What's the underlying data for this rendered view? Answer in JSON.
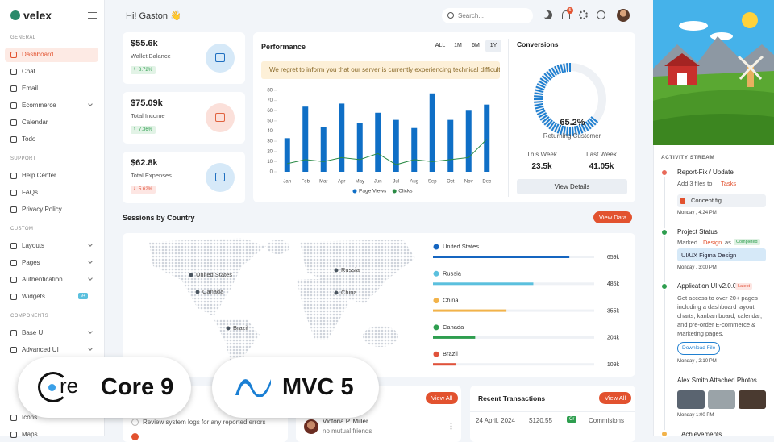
{
  "brand": "velex",
  "header": {
    "greeting": "Hi! Gaston 👋",
    "search": "Search...",
    "notifications": "5"
  },
  "sidebar": [
    {
      "title": "GENERAL",
      "items": [
        {
          "label": "Dashboard",
          "active": true
        },
        {
          "label": "Chat"
        },
        {
          "label": "Email"
        },
        {
          "label": "Ecommerce",
          "expand": true
        },
        {
          "label": "Calendar"
        },
        {
          "label": "Todo"
        }
      ]
    },
    {
      "title": "SUPPORT",
      "items": [
        {
          "label": "Help Center"
        },
        {
          "label": "FAQs"
        },
        {
          "label": "Privacy Policy"
        }
      ]
    },
    {
      "title": "CUSTOM",
      "items": [
        {
          "label": "Layouts",
          "expand": true
        },
        {
          "label": "Pages",
          "expand": true
        },
        {
          "label": "Authentication",
          "expand": true
        },
        {
          "label": "Widgets",
          "badge": "9+"
        }
      ]
    },
    {
      "title": "COMPONENTS",
      "items": [
        {
          "label": "Base UI",
          "expand": true
        },
        {
          "label": "Advanced UI",
          "expand": true
        },
        {
          "label": null
        },
        {
          "label": null
        },
        {
          "label": null
        },
        {
          "label": "Icons"
        },
        {
          "label": "Maps"
        }
      ]
    }
  ],
  "stats": [
    {
      "value": "$55.6k",
      "label": "Wallet Balance",
      "change": "8.72%",
      "trend": "up",
      "tint": "#d6e9f8",
      "ink": "#1f6fc0"
    },
    {
      "value": "$75.09k",
      "label": "Total Income",
      "change": "7.36%",
      "trend": "up",
      "tint": "#fbe0da",
      "ink": "#e0623f"
    },
    {
      "value": "$62.8k",
      "label": "Total Expenses",
      "change": "5.62%",
      "trend": "down",
      "tint": "#d6e9f8",
      "ink": "#1f6fc0"
    }
  ],
  "performance": {
    "title": "Performance",
    "filters": [
      "ALL",
      "1M",
      "6M",
      "1Y"
    ],
    "active_filter": 3,
    "alert": "We regret to inform you that our server is currently experiencing technical difficulti..."
  },
  "chart_data": {
    "type": "bar",
    "categories": [
      "Jan",
      "Feb",
      "Mar",
      "Apr",
      "May",
      "Jun",
      "Jul",
      "Aug",
      "Sep",
      "Oct",
      "Nov",
      "Dec"
    ],
    "series": [
      {
        "name": "Page Views",
        "type": "bar",
        "color": "#0f6fc6",
        "values": [
          33,
          64,
          44,
          67,
          48,
          58,
          51,
          43,
          77,
          51,
          60,
          66
        ]
      },
      {
        "name": "Clicks",
        "type": "line",
        "color": "#2a8a45",
        "values": [
          8,
          12,
          10,
          14,
          12,
          18,
          7,
          12,
          10,
          12,
          14,
          32
        ]
      }
    ],
    "ylim": [
      0,
      80
    ],
    "yticks": [
      0,
      10,
      20,
      30,
      40,
      50,
      60,
      70,
      80
    ],
    "legend": "bottom"
  },
  "conversions": {
    "title": "Conversions",
    "value": 65.2,
    "value_label": "65.2%",
    "label": "Returning Customer",
    "this_week_label": "This Week",
    "this_week": "23.5k",
    "last_week_label": "Last Week",
    "last_week": "41.05k",
    "button": "View Details"
  },
  "sessions": {
    "title": "Sessions by Country",
    "button": "View Data",
    "xlim": [
      0,
      900000
    ],
    "countries": [
      {
        "name": "United States",
        "value": 659000,
        "value_label": "659k",
        "color": "#1565c0"
      },
      {
        "name": "Russia",
        "value": 485000,
        "value_label": "485k",
        "color": "#5bc0de"
      },
      {
        "name": "China",
        "value": 355000,
        "value_label": "355k",
        "color": "#f2b34a"
      },
      {
        "name": "Canada",
        "value": 204000,
        "value_label": "204k",
        "color": "#2e9e4f"
      },
      {
        "name": "Brazil",
        "value": 109000,
        "value_label": "109k",
        "color": "#e0523a"
      }
    ]
  },
  "badges": {
    "core_logo": "re",
    "core": "Core 9",
    "mvc": "MVC 5"
  },
  "tasks": {
    "items": [
      "Review system logs for any reported errors"
    ]
  },
  "friends": {
    "button": "View All",
    "items": [
      {
        "name": "Victoria P. Miller",
        "info": "no mutual friends"
      }
    ]
  },
  "transactions": {
    "title": "Recent Transactions",
    "button": "View All",
    "rows": [
      [
        "24 April, 2024",
        "$120.55",
        "Cr",
        "Commisions"
      ]
    ]
  },
  "activity": {
    "title": "ACTIVITY STREAM",
    "report": {
      "title": "Report-Fix / Update",
      "text": "Add 3 files to",
      "link": "Tasks",
      "file": "Concept.fig",
      "time": "Monday , 4:24 PM"
    },
    "project": {
      "title": "Project Status",
      "text": "Marked",
      "link": "Design",
      "text2": "as",
      "badge": "Completed",
      "file": "UI/UX Figma Design",
      "time": "Monday , 3:00 PM"
    },
    "app": {
      "title": "Application UI v2.0.0",
      "badge": "Latest",
      "text": "Get access to over 20+ pages including a dashboard layout, charts, kanban board, calendar, and pre-order E-commerce & Marketing pages.",
      "button": "Download File",
      "time": "Monday , 2:10 PM"
    },
    "photos": {
      "title": "Alex Smith Attached Photos",
      "time": "Monday 1:00 PM"
    },
    "achievements": {
      "title": "Achievements"
    }
  }
}
